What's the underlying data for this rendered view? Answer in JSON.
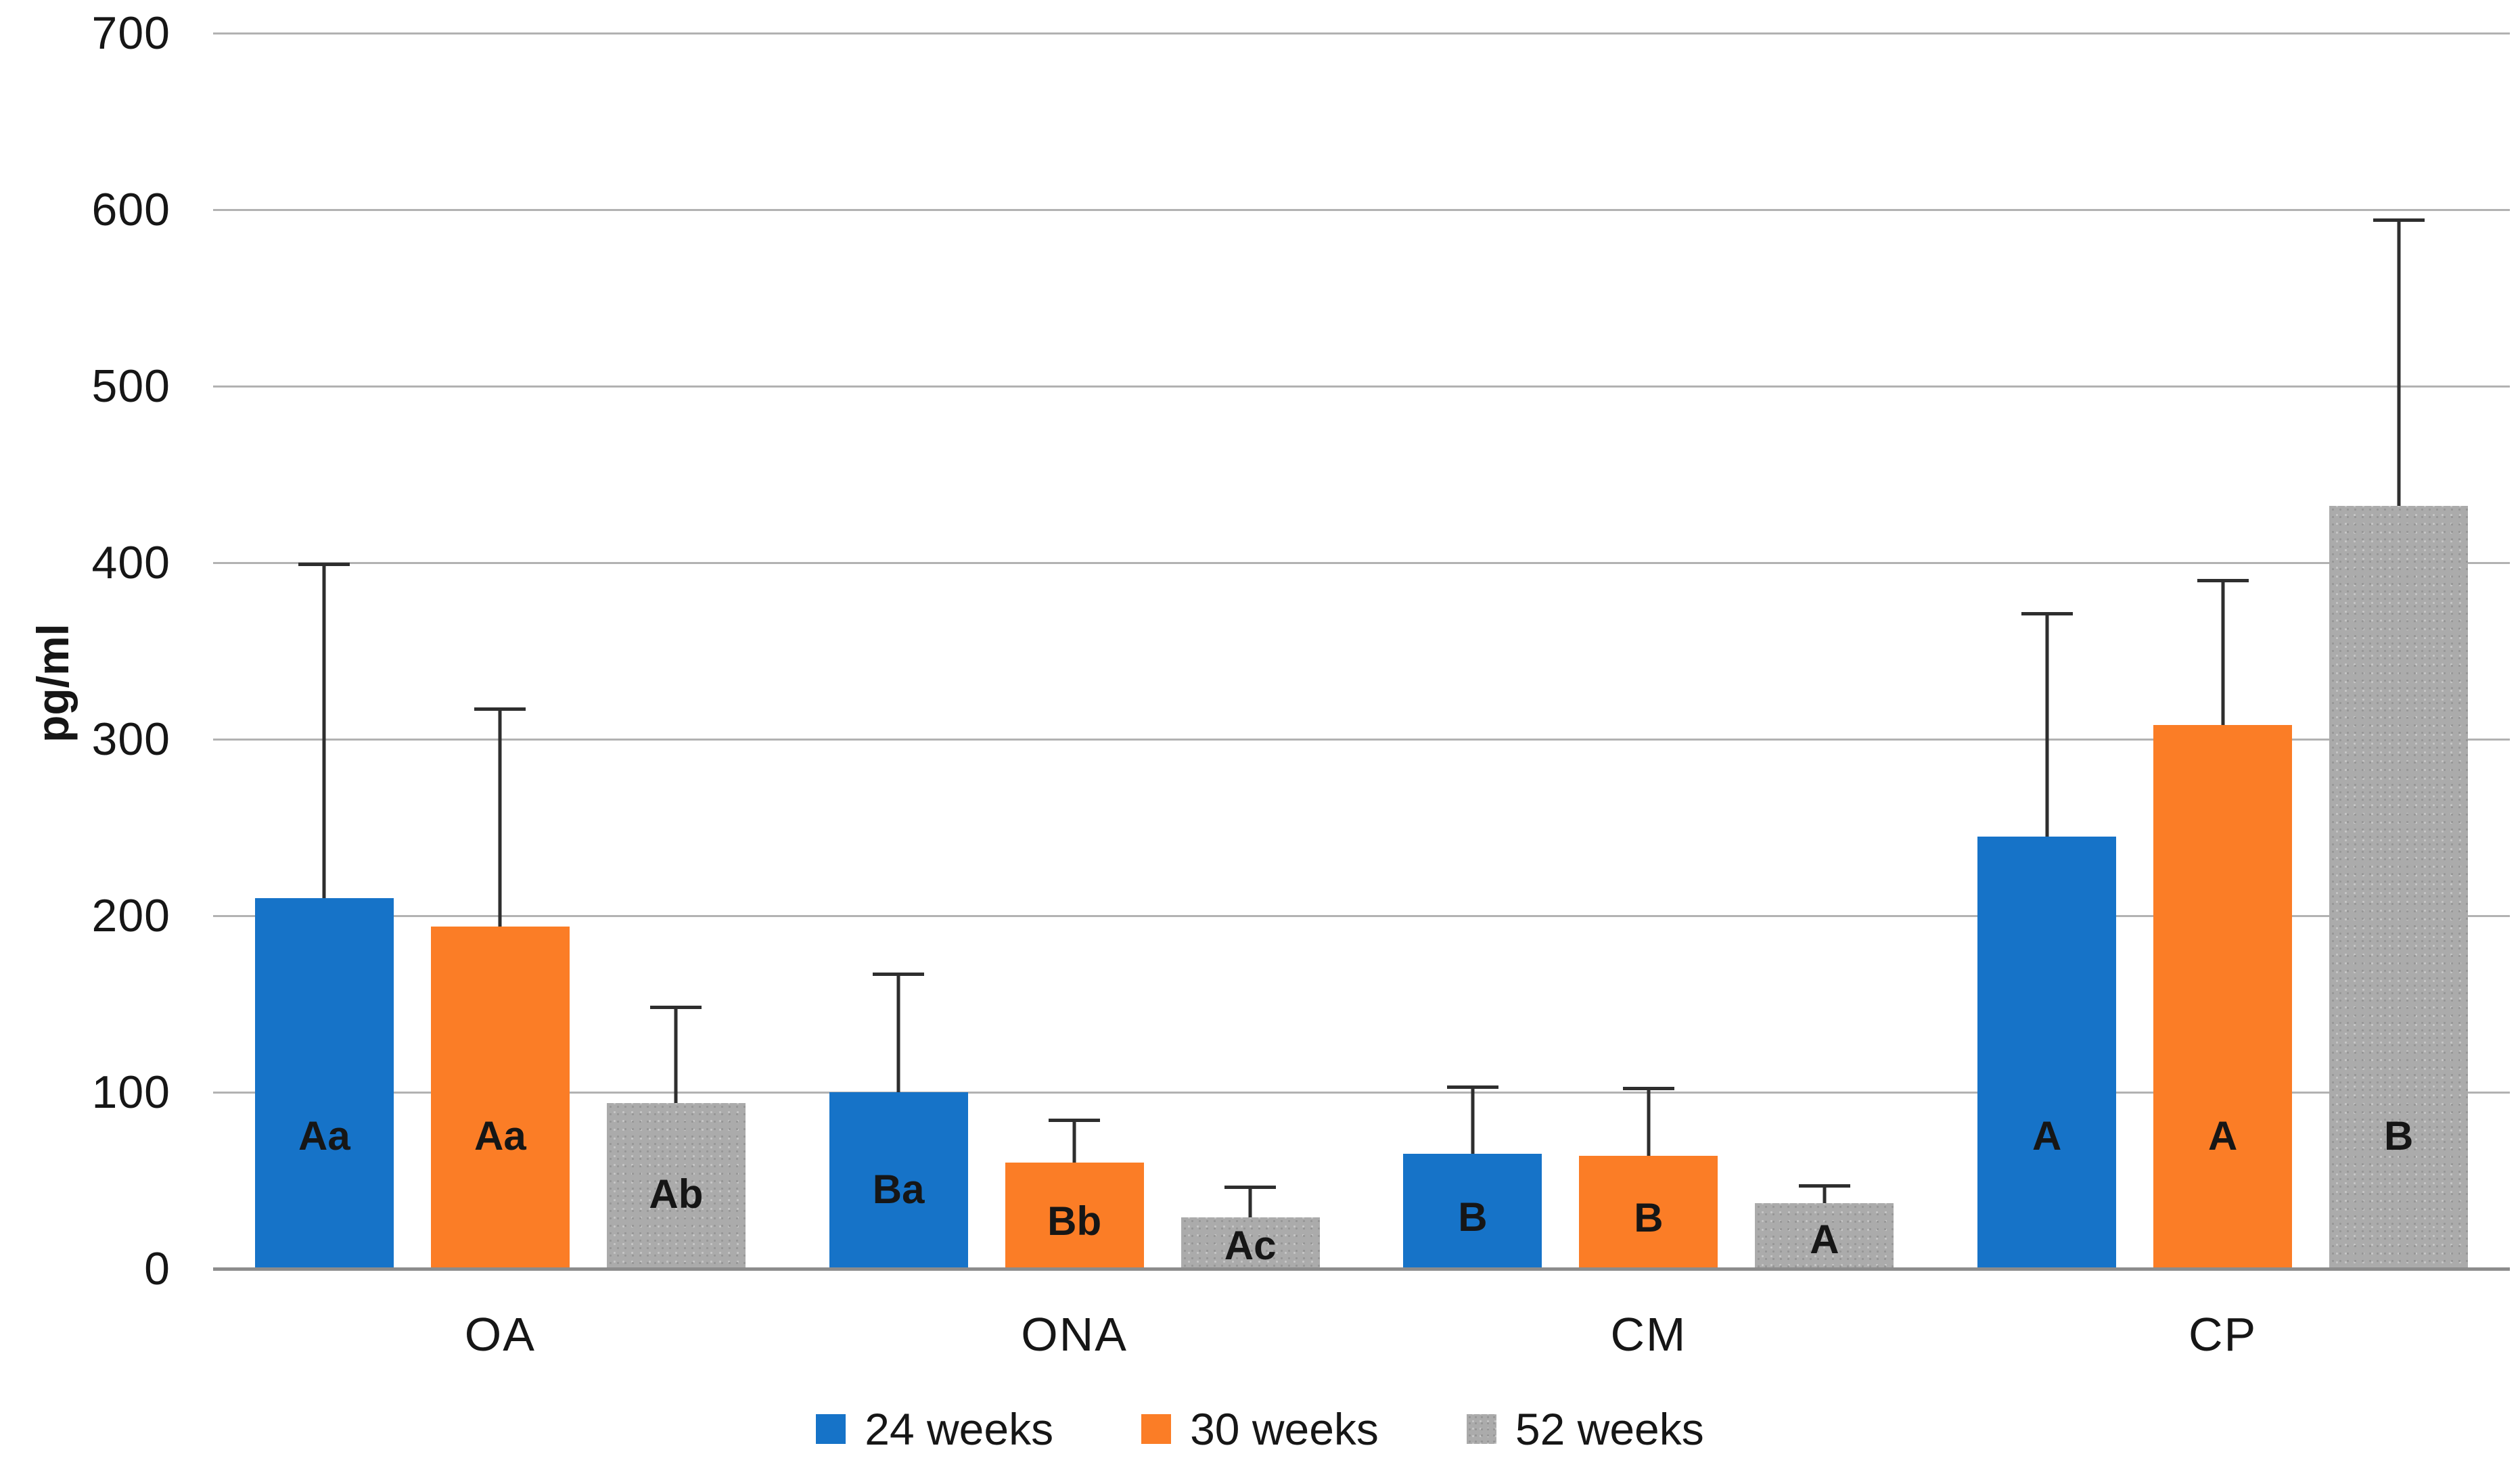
{
  "chart_data": {
    "type": "bar",
    "title": "",
    "ylabel": "pg/ml",
    "xlabel": "",
    "ylim": [
      0,
      700
    ],
    "yticks": [
      0,
      100,
      200,
      300,
      400,
      500,
      600,
      700
    ],
    "grid": true,
    "legend_position": "bottom-center",
    "categories": [
      "OA",
      "ONA",
      "CM",
      "CP"
    ],
    "series": [
      {
        "name": "24 weeks",
        "color": "#1673C8",
        "values": [
          210,
          100,
          65,
          245
        ],
        "error_top": [
          400,
          168,
          104,
          372
        ],
        "bar_labels": [
          "Aa",
          "Ba",
          "B",
          "A"
        ]
      },
      {
        "name": "30 weeks",
        "color": "#FB7D26",
        "values": [
          194,
          60,
          64,
          308
        ],
        "error_top": [
          318,
          85,
          103,
          391
        ],
        "bar_labels": [
          "Aa",
          "Bb",
          "B",
          "A"
        ]
      },
      {
        "name": "52 weeks",
        "color": "#ABABAB",
        "texture": "speckle",
        "values": [
          94,
          29,
          37,
          432
        ],
        "error_top": [
          149,
          47,
          48,
          595
        ],
        "bar_labels": [
          "Ab",
          "Ac",
          "A",
          "B"
        ]
      }
    ],
    "style_colors": {
      "gridline": "#B2B2B2",
      "axis_line": "#8C8C8C",
      "error_bar": "#2E2E2E",
      "text": "#161616"
    }
  }
}
